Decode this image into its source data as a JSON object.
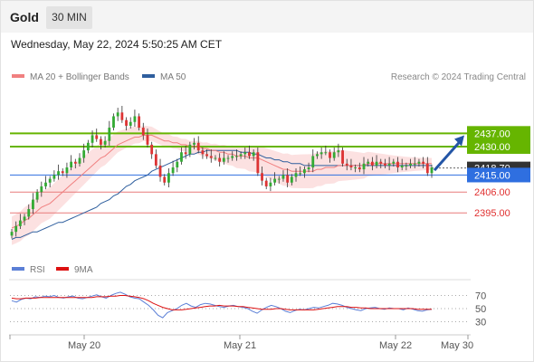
{
  "header": {
    "title": "Gold",
    "timeframe": "30 MIN"
  },
  "datetime": "Wednesday, May 22, 2024 5:50:25 AM CET",
  "legend_main": [
    {
      "label": "MA 20 + Bollinger Bands",
      "color": "#f08080"
    },
    {
      "label": "MA 50",
      "color": "#2f5f9e"
    }
  ],
  "research": "Research © 2024 Trading Central",
  "legend_rsi": [
    {
      "label": "RSI",
      "color": "#5b7fd6"
    },
    {
      "label": "9MA",
      "color": "#dd1111"
    }
  ],
  "colors": {
    "up": "#33aa33",
    "down": "#dd3333",
    "resistance": "#66b500",
    "pivot": "#2f6fe0",
    "support": "#e87a7a",
    "arrow": "#2355a6",
    "current": "#333333"
  },
  "chart_data": {
    "type": "candlestick",
    "title": "Gold",
    "timeframe": "30 MIN",
    "ylim": [
      2376,
      2462
    ],
    "x_ticks": [
      "May 20",
      "May 21",
      "May 22",
      "May 30"
    ],
    "levels": [
      {
        "label": "2437.00",
        "value": 2437.0,
        "kind": "resistance"
      },
      {
        "label": "2430.00",
        "value": 2430.0,
        "kind": "resistance"
      },
      {
        "label": "2415.00",
        "value": 2415.0,
        "kind": "pivot"
      },
      {
        "label": "2406.00",
        "value": 2406.0,
        "kind": "support"
      },
      {
        "label": "2395.00",
        "value": 2395.0,
        "kind": "support"
      }
    ],
    "current_price": {
      "label": "2418.70",
      "value": 2418.7
    },
    "close_series": [
      2385,
      2388,
      2391,
      2393,
      2397,
      2402,
      2406,
      2409,
      2411,
      2413,
      2415,
      2417,
      2416,
      2419,
      2422,
      2421,
      2424,
      2428,
      2432,
      2436,
      2434,
      2431,
      2433,
      2440,
      2446,
      2448,
      2444,
      2441,
      2443,
      2446,
      2440,
      2436,
      2431,
      2426,
      2420,
      2414,
      2411,
      2416,
      2419,
      2422,
      2427,
      2426,
      2431,
      2432,
      2428,
      2426,
      2425,
      2424,
      2424,
      2422,
      2424,
      2424,
      2425,
      2425,
      2426,
      2427,
      2425,
      2427,
      2416,
      2412,
      2409,
      2411,
      2413,
      2413,
      2415,
      2411,
      2414,
      2416,
      2416,
      2418,
      2419,
      2425,
      2426,
      2427,
      2427,
      2424,
      2427,
      2428,
      2421,
      2420,
      2419,
      2419,
      2418,
      2421,
      2422,
      2420,
      2422,
      2421,
      2420,
      2421,
      2422,
      2419,
      2420,
      2420,
      2421,
      2421,
      2422,
      2421,
      2416,
      2419
    ],
    "ma20": [
      2387,
      2388,
      2389,
      2391,
      2392,
      2394,
      2396,
      2398,
      2399,
      2400,
      2402,
      2404,
      2406,
      2408,
      2410,
      2412,
      2414,
      2416,
      2418,
      2420,
      2422,
      2424,
      2425,
      2427,
      2429,
      2431,
      2432,
      2433,
      2434,
      2435,
      2435,
      2436,
      2436,
      2436,
      2435,
      2434,
      2433,
      2433,
      2432,
      2432,
      2431,
      2431,
      2430,
      2430,
      2430,
      2429,
      2429,
      2428,
      2428,
      2427,
      2427,
      2426,
      2426,
      2425,
      2425,
      2425,
      2424,
      2424,
      2424,
      2423,
      2422,
      2421,
      2420,
      2419,
      2418,
      2418,
      2417,
      2417,
      2417,
      2417,
      2417,
      2417,
      2418,
      2418,
      2419,
      2419,
      2419,
      2420,
      2420,
      2420,
      2420,
      2420,
      2420,
      2420,
      2421,
      2421,
      2421,
      2421,
      2421,
      2421,
      2421,
      2421,
      2421,
      2421,
      2421,
      2421,
      2421,
      2421,
      2421,
      2421
    ],
    "ma50": [
      2381,
      2382,
      2382,
      2383,
      2384,
      2385,
      2385,
      2386,
      2387,
      2388,
      2389,
      2390,
      2390,
      2391,
      2392,
      2393,
      2394,
      2395,
      2396,
      2397,
      2398,
      2400,
      2401,
      2402,
      2404,
      2405,
      2407,
      2409,
      2410,
      2412,
      2413,
      2414,
      2415,
      2417,
      2418,
      2419,
      2420,
      2421,
      2422,
      2423,
      2424,
      2425,
      2426,
      2426,
      2427,
      2427,
      2428,
      2428,
      2428,
      2428,
      2428,
      2428,
      2428,
      2428,
      2427,
      2427,
      2427,
      2426,
      2426,
      2425,
      2424,
      2424,
      2423,
      2423,
      2422,
      2422,
      2421,
      2421,
      2421,
      2420,
      2420,
      2420,
      2420,
      2420,
      2420,
      2420,
      2420,
      2420,
      2420,
      2420,
      2420,
      2420,
      2420,
      2420,
      2420,
      2420,
      2420,
      2420,
      2420,
      2420,
      2420,
      2420,
      2420,
      2420,
      2420,
      2420,
      2420,
      2420,
      2420,
      2420
    ],
    "rsi": {
      "levels": [
        70,
        50,
        30
      ],
      "ylim": [
        10,
        90
      ],
      "rsi": [
        62,
        60,
        64,
        66,
        65,
        68,
        67,
        69,
        68,
        70,
        67,
        66,
        68,
        69,
        66,
        65,
        67,
        69,
        71,
        68,
        66,
        70,
        73,
        75,
        72,
        68,
        66,
        65,
        60,
        55,
        48,
        40,
        36,
        44,
        47,
        50,
        55,
        58,
        54,
        52,
        56,
        58,
        57,
        55,
        53,
        52,
        54,
        55,
        53,
        52,
        50,
        46,
        43,
        48,
        52,
        55,
        53,
        50,
        46,
        44,
        47,
        49,
        48,
        50,
        52,
        51,
        53,
        55,
        58,
        57,
        55,
        52,
        50,
        48,
        47,
        50,
        51,
        52,
        50,
        49,
        51,
        50,
        50,
        48,
        51,
        49,
        47,
        46,
        48,
        49
      ],
      "ma9": [
        66,
        65,
        65,
        66,
        66,
        66,
        67,
        67,
        67,
        67,
        67,
        67,
        67,
        67,
        67,
        67,
        67,
        67,
        68,
        68,
        68,
        69,
        69,
        70,
        70,
        69,
        68,
        67,
        65,
        62,
        58,
        55,
        52,
        50,
        48,
        48,
        48,
        49,
        50,
        51,
        52,
        53,
        54,
        54,
        55,
        54,
        54,
        54,
        53,
        53,
        52,
        51,
        50,
        49,
        49,
        49,
        50,
        50,
        49,
        48,
        48,
        48,
        48,
        48,
        48,
        49,
        50,
        51,
        52,
        53,
        53,
        53,
        52,
        52,
        51,
        51,
        50,
        50,
        50,
        50,
        50,
        50,
        50,
        50,
        50,
        50,
        49,
        49,
        49,
        49
      ]
    }
  }
}
